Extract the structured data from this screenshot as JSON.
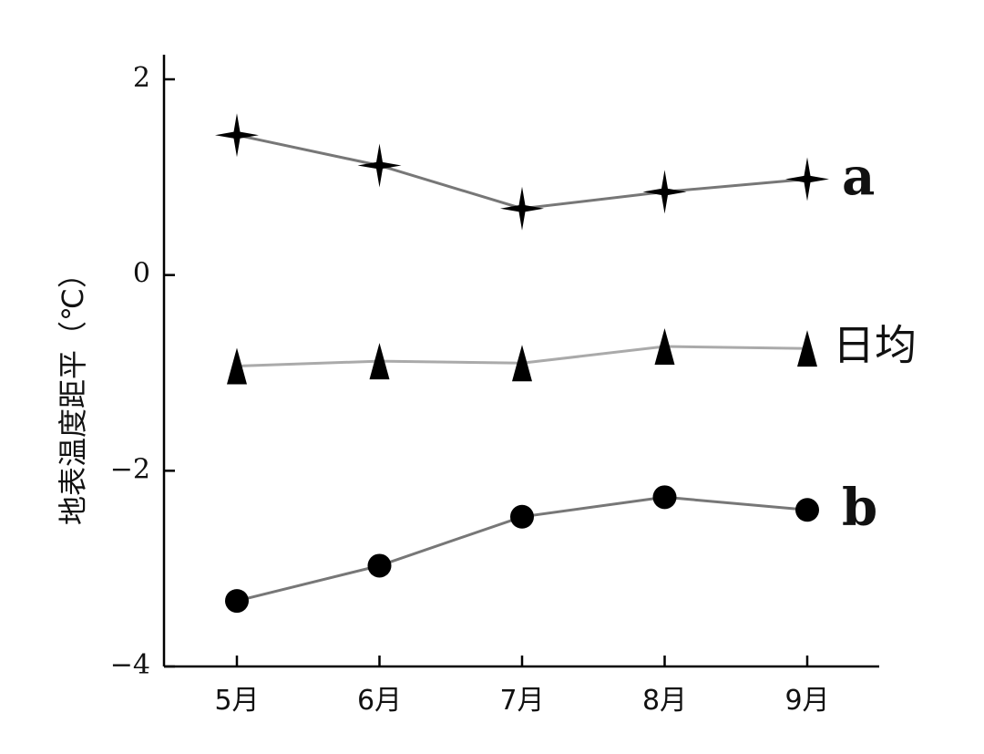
{
  "chart_data": {
    "type": "line",
    "title": "",
    "xlabel": "",
    "ylabel": "地表温度距平（℃）",
    "categories": [
      "5月",
      "6月",
      "7月",
      "8月",
      "9月"
    ],
    "ylim": [
      -4,
      2.2
    ],
    "yticks": [
      "2",
      "0",
      "−2",
      "−4"
    ],
    "grid": false,
    "series": [
      {
        "name": "a",
        "marker": "star",
        "color": "#777777",
        "values": [
          1.43,
          1.12,
          0.68,
          0.85,
          0.98
        ]
      },
      {
        "name": "日均",
        "marker": "triangle",
        "color": "#aaaaaa",
        "values": [
          -0.93,
          -0.88,
          -0.9,
          -0.73,
          -0.75
        ]
      },
      {
        "name": "b",
        "marker": "circle",
        "color": "#777777",
        "values": [
          -3.33,
          -2.97,
          -2.47,
          -2.27,
          -2.4
        ]
      }
    ]
  }
}
